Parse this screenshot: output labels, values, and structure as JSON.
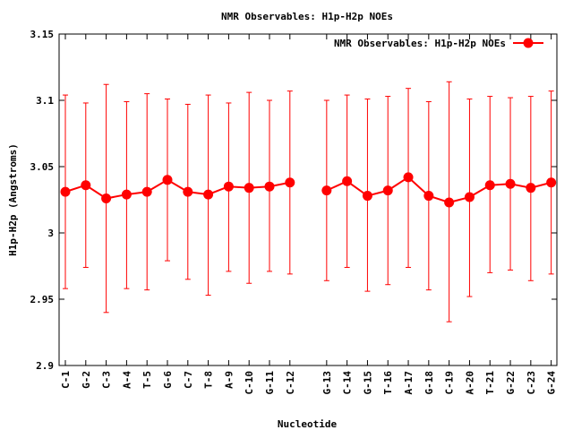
{
  "chart_data": {
    "type": "line",
    "title": "NMR Observables: H1p-H2p NOEs",
    "xlabel": "Nucleotide",
    "ylabel": "H1p-H2p (Angstroms)",
    "ylim": [
      2.9,
      3.15
    ],
    "yticks": [
      "2.9",
      "2.95",
      "3",
      "3.05",
      "3.1",
      "3.15"
    ],
    "legend_position": "top-right",
    "grid": false,
    "series": [
      {
        "name": "NMR Observables: H1p-H2p NOEs",
        "color": "#ff0000",
        "marker": "circle",
        "error_bars": true,
        "segments": [
          {
            "categories": [
              "C-1",
              "G-2",
              "C-3",
              "A-4",
              "T-5",
              "G-6",
              "C-7",
              "T-8",
              "A-9",
              "C-10",
              "G-11",
              "C-12"
            ],
            "values": [
              3.031,
              3.036,
              3.026,
              3.029,
              3.031,
              3.04,
              3.031,
              3.029,
              3.035,
              3.034,
              3.035,
              3.038
            ],
            "err_low": [
              2.958,
              2.974,
              2.94,
              2.958,
              2.957,
              2.979,
              2.965,
              2.953,
              2.971,
              2.962,
              2.971,
              2.969
            ],
            "err_high": [
              3.104,
              3.098,
              3.112,
              3.099,
              3.105,
              3.101,
              3.097,
              3.104,
              3.098,
              3.106,
              3.1,
              3.107
            ]
          },
          {
            "categories": [
              "G-13",
              "C-14",
              "G-15",
              "T-16",
              "A-17",
              "G-18",
              "C-19",
              "A-20",
              "T-21",
              "G-22",
              "C-23",
              "G-24"
            ],
            "values": [
              3.032,
              3.039,
              3.028,
              3.032,
              3.042,
              3.028,
              3.023,
              3.027,
              3.036,
              3.037,
              3.034,
              3.038
            ],
            "err_low": [
              2.964,
              2.974,
              2.956,
              2.961,
              2.974,
              2.957,
              2.933,
              2.952,
              2.97,
              2.972,
              2.964,
              2.969
            ],
            "err_high": [
              3.1,
              3.104,
              3.101,
              3.103,
              3.109,
              3.099,
              3.114,
              3.101,
              3.103,
              3.102,
              3.103,
              3.107
            ]
          }
        ]
      }
    ]
  }
}
